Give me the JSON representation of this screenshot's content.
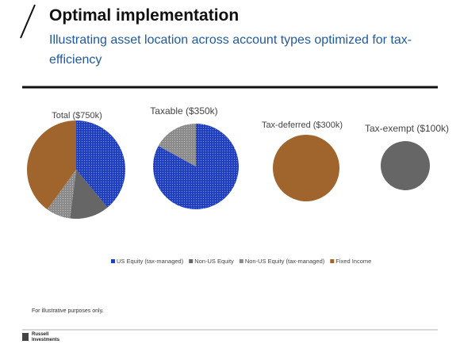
{
  "header": {
    "title": "Optimal implementation",
    "subtitle": "Illustrating asset location across account types optimized for tax-efficiency"
  },
  "legend": {
    "names": [
      "US Equity (tax-managed)",
      "Non-US Equity",
      "Non-US Equity (tax-managed)",
      "Fixed Income"
    ],
    "colors": [
      "#1f3fbf",
      "#666666",
      "#8a8a8a",
      "#a0642d"
    ]
  },
  "chart_data": [
    {
      "type": "pie",
      "title": "Total ($750k)",
      "values": [
        39,
        13,
        8,
        40
      ]
    },
    {
      "type": "pie",
      "title": "Taxable ($350k)",
      "values": [
        83,
        0,
        17,
        0
      ]
    },
    {
      "type": "pie",
      "title": "Tax-deferred ($300k)",
      "values": [
        0,
        0,
        0,
        100
      ]
    },
    {
      "type": "pie",
      "title": "Tax-exempt ($100k)",
      "values": [
        0,
        100,
        0,
        0
      ]
    }
  ],
  "footer": {
    "note": "For illustrative purposes only.",
    "logo": "Russell Investments"
  }
}
